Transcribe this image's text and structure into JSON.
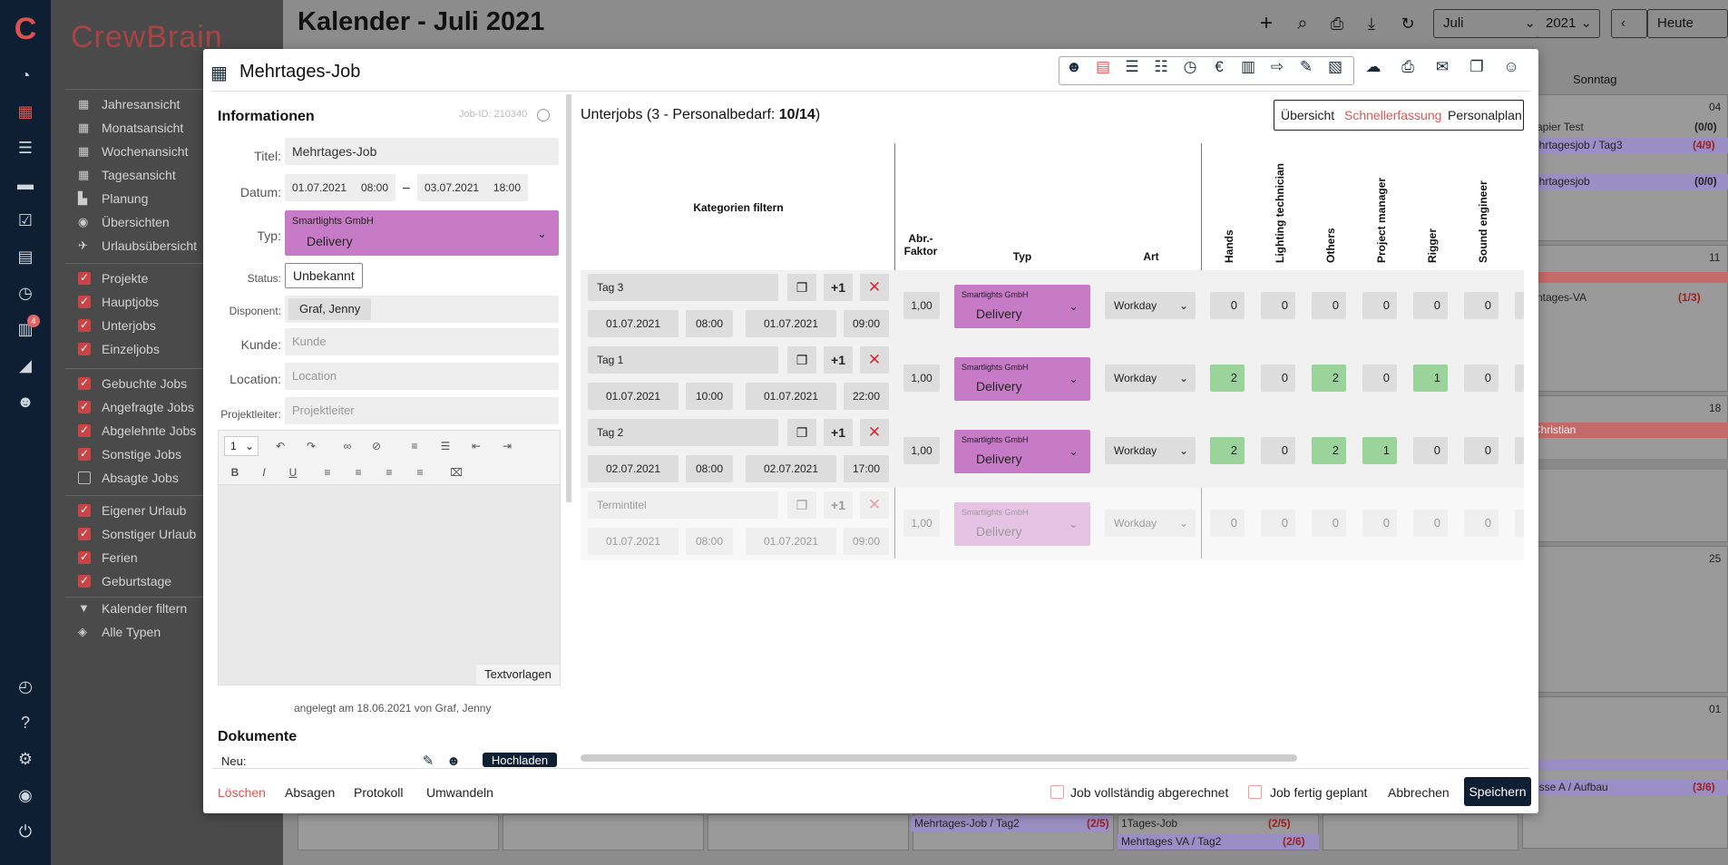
{
  "app": {
    "brand": "CrewBrain",
    "notifications_count": "4"
  },
  "calendar": {
    "title": "Kalender - Juli 2021",
    "month": "Juli",
    "year": "2021",
    "today": "Heute",
    "column_header": "Sonntag",
    "day_numbers": [
      "04",
      "11",
      "18",
      "25",
      "01"
    ],
    "events": [
      {
        "text": "apier Test",
        "count": "(0/0)"
      },
      {
        "text": "ehrtagesjob / Tag3",
        "count": "(4/9)"
      },
      {
        "text": "ehrtagesjob",
        "count": "(0/0)"
      },
      {
        "text": "ntages-VA",
        "count": "(1/3)"
      },
      {
        "text": "Christian",
        "count": ""
      },
      {
        "text": "esse A / Aufbau",
        "count": "(3/6)"
      },
      {
        "text": "Mehrtages-Job / Tag2",
        "count": "(2/5)"
      },
      {
        "text": "1Tages-Job",
        "count": "(2/5)"
      },
      {
        "text": "Mehrtages VA / Tag2",
        "count": "(2/6)"
      }
    ]
  },
  "sidebar": {
    "views": [
      "Jahresansicht",
      "Monatsansicht",
      "Wochenansicht",
      "Tagesansicht",
      "Planung",
      "Übersichten",
      "Urlaubsübersicht"
    ],
    "filters_a": [
      "Projekte",
      "Hauptjobs",
      "Unterjobs",
      "Einzeljobs"
    ],
    "filters_b": [
      "Gebuchte Jobs",
      "Angefragte Jobs",
      "Abgelehnte Jobs",
      "Sonstige Jobs",
      "Absagte Jobs"
    ],
    "filters_c": [
      "Eigener Urlaub",
      "Sonstiger Urlaub",
      "Ferien",
      "Geburtstage"
    ],
    "tools": [
      "Kalender filtern",
      "Alle Typen"
    ]
  },
  "modal": {
    "title": "Mehrtages-Job",
    "info": {
      "heading": "Informationen",
      "job_id": "Job-ID: 210340",
      "title_label": "Titel:",
      "title_value": "Mehrtages-Job",
      "date_label": "Datum:",
      "date_from": "01.07.2021",
      "time_from": "08:00",
      "date_sep": "–",
      "date_to": "03.07.2021",
      "time_to": "18:00",
      "type_label": "Typ:",
      "type_company": "Smartlights GmbH",
      "type_value": "Delivery",
      "status_label": "Status:",
      "status_value": "Unbekannt",
      "disponent_label": "Disponent:",
      "disponent_value": "Graf, Jenny",
      "customer_label": "Kunde:",
      "customer_placeholder": "Kunde",
      "location_label": "Location:",
      "location_placeholder": "Location",
      "pm_label": "Projektleiter:",
      "pm_placeholder": "Projektleiter",
      "font_size": "1",
      "templates": "Textvorlagen",
      "created": "angelegt am 18.06.2021 von Graf, Jenny",
      "docs_heading": "Dokumente",
      "new_label": "Neu:",
      "upload": "Hochladen"
    },
    "subjobs": {
      "heading_prefix": "Unterjobs (3 - Personalbedarf: ",
      "heading_value": "10/14",
      "heading_suffix": ")",
      "views": [
        "Übersicht",
        "Schnellerfassung",
        "Personalplan"
      ],
      "filter_label": "Kategorien filtern",
      "col_factor": "Abr.-Faktor",
      "col_factor_1": "Abr.-",
      "col_factor_2": "Faktor",
      "col_type": "Typ",
      "col_kind": "Art",
      "roles": [
        "Hands",
        "Lighting technician",
        "Others",
        "Project manager",
        "Rigger",
        "Sound engineer"
      ],
      "plus_one": "+1",
      "rows": [
        {
          "title": "Tag 3",
          "date_from": "01.07.2021",
          "time_from": "08:00",
          "date_to": "01.07.2021",
          "time_to": "09:00",
          "factor": "1,00",
          "company": "Smartlights GmbH",
          "type": "Delivery",
          "kind": "Workday",
          "counts": [
            "0",
            "0",
            "0",
            "0",
            "0",
            "0"
          ],
          "green": [
            false,
            false,
            false,
            false,
            false,
            false
          ]
        },
        {
          "title": "Tag 1",
          "date_from": "01.07.2021",
          "time_from": "10:00",
          "date_to": "01.07.2021",
          "time_to": "22:00",
          "factor": "1,00",
          "company": "Smartlights GmbH",
          "type": "Delivery",
          "kind": "Workday",
          "counts": [
            "2",
            "0",
            "2",
            "0",
            "1",
            "0"
          ],
          "green": [
            true,
            false,
            true,
            false,
            true,
            false
          ]
        },
        {
          "title": "Tag 2",
          "date_from": "02.07.2021",
          "time_from": "08:00",
          "date_to": "02.07.2021",
          "time_to": "17:00",
          "factor": "1,00",
          "company": "Smartlights GmbH",
          "type": "Delivery",
          "kind": "Workday",
          "counts": [
            "2",
            "0",
            "2",
            "1",
            "0",
            "0"
          ],
          "green": [
            true,
            false,
            true,
            true,
            false,
            false
          ]
        },
        {
          "title": "Termintitel",
          "date_from": "01.07.2021",
          "time_from": "08:00",
          "date_to": "01.07.2021",
          "time_to": "09:00",
          "factor": "1,00",
          "company": "Smartlights GmbH",
          "type": "Delivery",
          "kind": "Workday",
          "counts": [
            "0",
            "0",
            "0",
            "0",
            "0",
            "0"
          ],
          "green": [
            false,
            false,
            false,
            false,
            false,
            false
          ]
        }
      ]
    },
    "footer": {
      "delete": "Löschen",
      "cancel_job": "Absagen",
      "log": "Protokoll",
      "convert": "Umwandeln",
      "fully_billed": "Job vollständig abgerechnet",
      "fully_planned": "Job fertig geplant",
      "abort": "Abbrechen",
      "save": "Speichern"
    }
  },
  "colors": {
    "navy": "#0f1f33",
    "purple": "#c77bc6",
    "green": "#9bd49b",
    "red": "#d62b2b",
    "accent_link": "#e05555"
  }
}
